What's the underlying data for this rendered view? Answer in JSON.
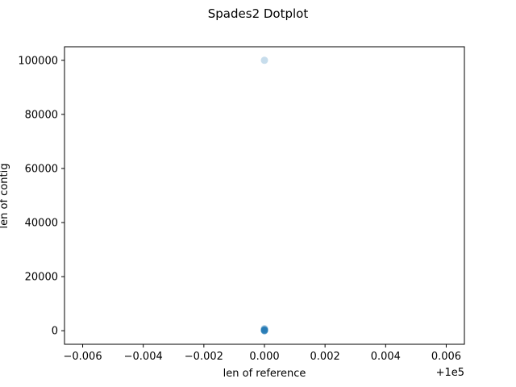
{
  "chart_data": {
    "type": "scatter",
    "title": "Spades2 Dotplot",
    "xlabel": "len of reference",
    "ylabel": "len of contig",
    "x_offset_label": "+1e5",
    "xlim": [
      -0.0066,
      0.0066
    ],
    "ylim": [
      -5000,
      105000
    ],
    "xticks": [
      -0.006,
      -0.004,
      -0.002,
      0.0,
      0.002,
      0.004,
      0.006
    ],
    "xtick_labels": [
      "−0.006",
      "−0.004",
      "−0.002",
      "0.000",
      "0.002",
      "0.004",
      "0.006"
    ],
    "yticks": [
      0,
      20000,
      40000,
      60000,
      80000,
      100000
    ],
    "ytick_labels": [
      "0",
      "20000",
      "40000",
      "60000",
      "80000",
      "100000"
    ],
    "grid": false,
    "point_color": "#1f77b4",
    "point_alpha": 0.25,
    "points": [
      {
        "x": 0.0,
        "y": 100000
      },
      {
        "x": 0.0,
        "y": 800
      },
      {
        "x": 0.0,
        "y": 600
      },
      {
        "x": 0.0,
        "y": 450
      },
      {
        "x": 0.0,
        "y": 350
      },
      {
        "x": 0.0,
        "y": 250
      },
      {
        "x": 0.0,
        "y": 180
      },
      {
        "x": 0.0,
        "y": 120
      },
      {
        "x": 0.0,
        "y": 80
      },
      {
        "x": 0.0,
        "y": 50
      },
      {
        "x": 0.0,
        "y": 30
      },
      {
        "x": 0.0,
        "y": 10
      }
    ]
  }
}
